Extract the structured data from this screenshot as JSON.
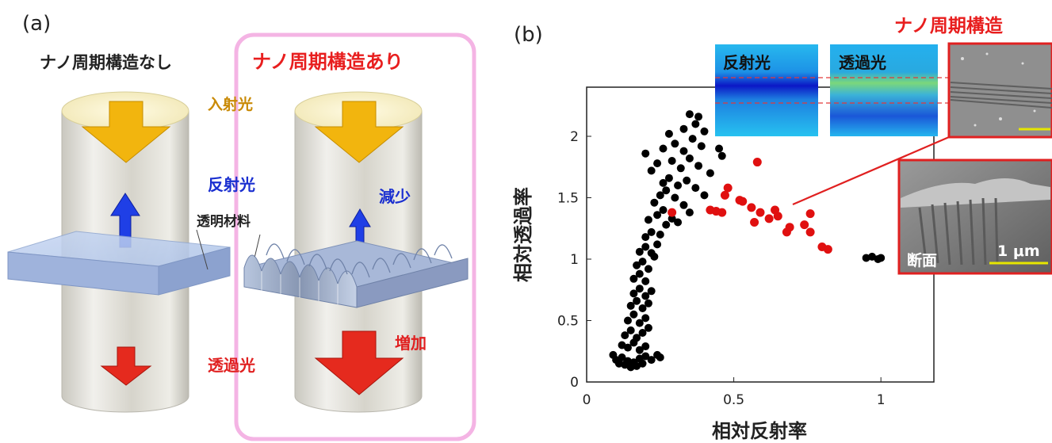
{
  "panel_a": {
    "label": "(a)",
    "left_title": "ナノ周期構造なし",
    "right_title": "ナノ周期構造あり",
    "incident_label": "入射光",
    "reflected_label": "反射光",
    "decrease_label": "減少",
    "material_label": "透明材料",
    "transmitted_label": "透過光",
    "increase_label": "増加",
    "colors": {
      "incident": "#e0a000",
      "reflected": "#1a2fd0",
      "transmitted": "#e02020",
      "frame": "#f4b4e4"
    }
  },
  "panel_b": {
    "label": "(b)",
    "corner_title": "ナノ周期構造",
    "inset_reflect_label": "反射光",
    "inset_transmit_label": "透過光",
    "sem_section_label": "断面",
    "sem_scale_label": "1 μm",
    "chart_data": {
      "type": "scatter",
      "xlabel": "相対反射率",
      "ylabel": "相対透過率",
      "xlim": [
        0,
        1.18
      ],
      "ylim": [
        0,
        2.4
      ],
      "x_ticks": [
        "0",
        "0.5",
        "1"
      ],
      "y_ticks": [
        "0",
        "0.5",
        "1",
        "1.5",
        "2"
      ],
      "grid": false,
      "series": [
        {
          "color": "#000000",
          "points": [
            [
              0.09,
              0.22
            ],
            [
              0.1,
              0.18
            ],
            [
              0.11,
              0.15
            ],
            [
              0.12,
              0.2
            ],
            [
              0.13,
              0.14
            ],
            [
              0.14,
              0.17
            ],
            [
              0.15,
              0.12
            ],
            [
              0.16,
              0.16
            ],
            [
              0.17,
              0.13
            ],
            [
              0.18,
              0.19
            ],
            [
              0.19,
              0.15
            ],
            [
              0.2,
              0.21
            ],
            [
              0.22,
              0.18
            ],
            [
              0.24,
              0.22
            ],
            [
              0.25,
              0.2
            ],
            [
              0.12,
              0.3
            ],
            [
              0.14,
              0.28
            ],
            [
              0.16,
              0.32
            ],
            [
              0.18,
              0.26
            ],
            [
              0.2,
              0.29
            ],
            [
              0.13,
              0.38
            ],
            [
              0.15,
              0.42
            ],
            [
              0.17,
              0.36
            ],
            [
              0.19,
              0.4
            ],
            [
              0.21,
              0.44
            ],
            [
              0.14,
              0.5
            ],
            [
              0.16,
              0.55
            ],
            [
              0.18,
              0.48
            ],
            [
              0.2,
              0.52
            ],
            [
              0.15,
              0.62
            ],
            [
              0.17,
              0.66
            ],
            [
              0.19,
              0.6
            ],
            [
              0.21,
              0.64
            ],
            [
              0.16,
              0.72
            ],
            [
              0.18,
              0.76
            ],
            [
              0.2,
              0.7
            ],
            [
              0.22,
              0.74
            ],
            [
              0.16,
              0.84
            ],
            [
              0.18,
              0.88
            ],
            [
              0.2,
              0.82
            ],
            [
              0.17,
              0.95
            ],
            [
              0.19,
              0.98
            ],
            [
              0.21,
              0.92
            ],
            [
              0.23,
              1.02
            ],
            [
              0.18,
              1.06
            ],
            [
              0.2,
              1.1
            ],
            [
              0.22,
              1.05
            ],
            [
              0.24,
              1.12
            ],
            [
              0.2,
              1.18
            ],
            [
              0.22,
              1.22
            ],
            [
              0.25,
              1.2
            ],
            [
              0.27,
              1.28
            ],
            [
              0.21,
              1.32
            ],
            [
              0.24,
              1.36
            ],
            [
              0.26,
              1.4
            ],
            [
              0.29,
              1.33
            ],
            [
              0.31,
              1.3
            ],
            [
              0.23,
              1.46
            ],
            [
              0.25,
              1.52
            ],
            [
              0.27,
              1.56
            ],
            [
              0.3,
              1.5
            ],
            [
              0.33,
              1.44
            ],
            [
              0.35,
              1.38
            ],
            [
              0.26,
              1.62
            ],
            [
              0.28,
              1.66
            ],
            [
              0.31,
              1.6
            ],
            [
              0.34,
              1.64
            ],
            [
              0.37,
              1.58
            ],
            [
              0.4,
              1.52
            ],
            [
              0.22,
              1.72
            ],
            [
              0.24,
              1.78
            ],
            [
              0.29,
              1.8
            ],
            [
              0.32,
              1.74
            ],
            [
              0.35,
              1.82
            ],
            [
              0.38,
              1.76
            ],
            [
              0.42,
              1.7
            ],
            [
              0.2,
              1.86
            ],
            [
              0.26,
              1.9
            ],
            [
              0.3,
              1.94
            ],
            [
              0.33,
              1.88
            ],
            [
              0.36,
              1.98
            ],
            [
              0.39,
              1.92
            ],
            [
              0.45,
              1.9
            ],
            [
              0.28,
              2.02
            ],
            [
              0.33,
              2.06
            ],
            [
              0.37,
              2.1
            ],
            [
              0.4,
              2.04
            ],
            [
              0.35,
              2.18
            ],
            [
              0.38,
              2.16
            ],
            [
              0.46,
              1.84
            ],
            [
              0.95,
              1.01
            ],
            [
              0.97,
              1.02
            ],
            [
              0.99,
              1.0
            ],
            [
              1.0,
              1.01
            ]
          ]
        },
        {
          "color": "#e01010",
          "points": [
            [
              0.29,
              1.38
            ],
            [
              0.42,
              1.4
            ],
            [
              0.44,
              1.39
            ],
            [
              0.46,
              1.38
            ],
            [
              0.47,
              1.52
            ],
            [
              0.48,
              1.58
            ],
            [
              0.52,
              1.48
            ],
            [
              0.53,
              1.47
            ],
            [
              0.56,
              1.42
            ],
            [
              0.57,
              1.3
            ],
            [
              0.58,
              1.79
            ],
            [
              0.59,
              1.38
            ],
            [
              0.62,
              1.33
            ],
            [
              0.64,
              1.4
            ],
            [
              0.65,
              1.35
            ],
            [
              0.68,
              1.22
            ],
            [
              0.69,
              1.26
            ],
            [
              0.74,
              1.28
            ],
            [
              0.76,
              1.22
            ],
            [
              0.76,
              1.37
            ],
            [
              0.8,
              1.1
            ],
            [
              0.82,
              1.08
            ]
          ]
        }
      ]
    }
  }
}
